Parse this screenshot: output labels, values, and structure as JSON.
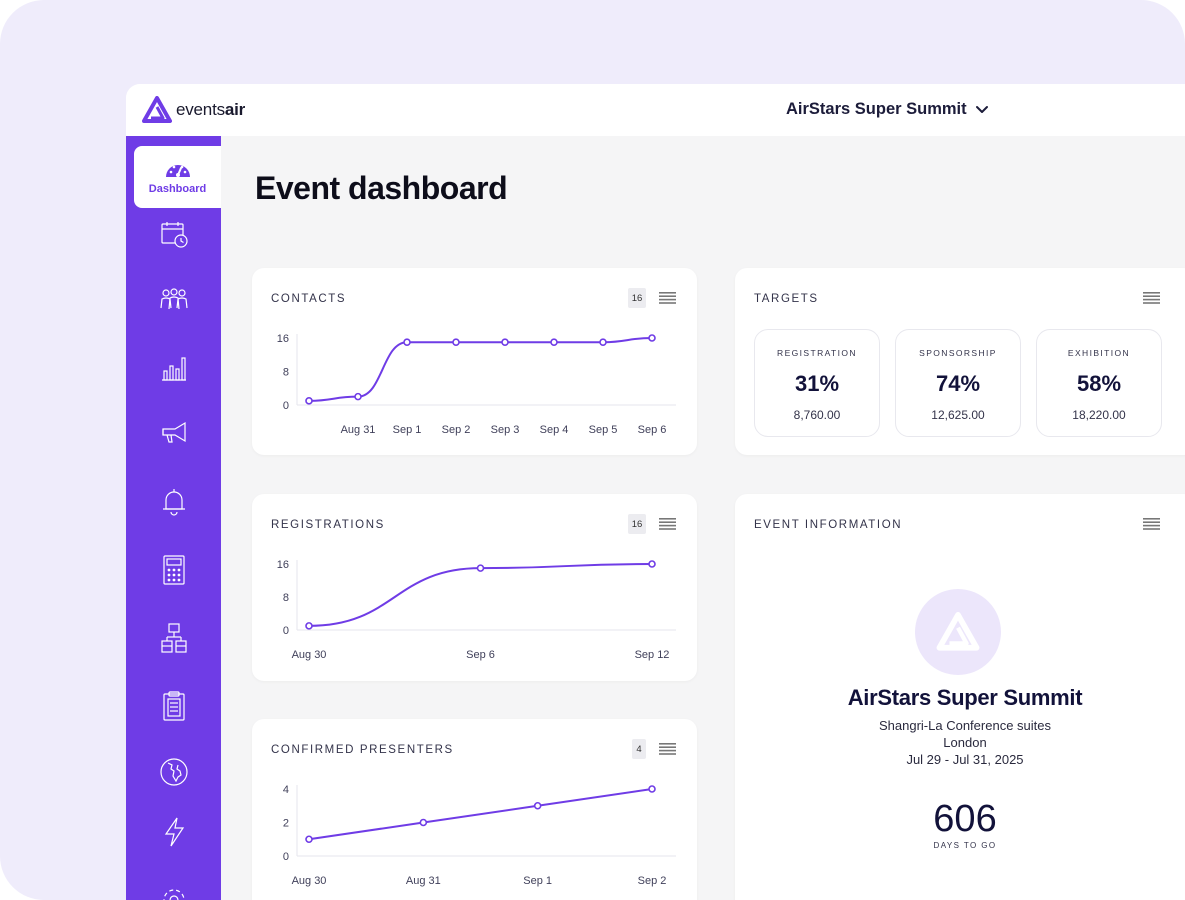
{
  "app": {
    "logo_prefix": "events",
    "logo_suffix": "air",
    "event_selector": "AirStars Super Summit"
  },
  "sidebar": {
    "active_label": "Dashboard",
    "icons": [
      "dashboard-gauge-icon",
      "calendar-clock-icon",
      "people-icon",
      "bar-chart-icon",
      "megaphone-icon",
      "bell-icon",
      "calculator-icon",
      "hierarchy-icon",
      "clipboard-icon",
      "globe-icon",
      "lightning-icon",
      "settings-gear-icon"
    ]
  },
  "page": {
    "title": "Event dashboard"
  },
  "contacts": {
    "title": "CONTACTS",
    "badge": "16",
    "chart_data": {
      "type": "line",
      "x": [
        "",
        "Aug 31",
        "Sep 1",
        "Sep 2",
        "Sep 3",
        "Sep 4",
        "Sep 5",
        "Sep 6"
      ],
      "values": [
        1,
        2,
        15,
        15,
        15,
        15,
        15,
        16
      ],
      "y_ticks": [
        "16",
        "8",
        "0"
      ],
      "ylim": [
        0,
        16
      ],
      "color": "#6f3ce6"
    }
  },
  "registrations": {
    "title": "REGISTRATIONS",
    "badge": "16",
    "chart_data": {
      "type": "line",
      "x": [
        "Aug 30",
        "Sep 6",
        "Sep 12"
      ],
      "values": [
        1,
        15,
        16
      ],
      "y_ticks": [
        "16",
        "8",
        "0"
      ],
      "ylim": [
        0,
        16
      ],
      "color": "#6f3ce6"
    }
  },
  "presenters": {
    "title": "CONFIRMED PRESENTERS",
    "badge": "4",
    "chart_data": {
      "type": "line",
      "x": [
        "Aug 30",
        "Aug 31",
        "Sep 1",
        "Sep 2"
      ],
      "values": [
        1,
        2,
        3,
        4
      ],
      "y_ticks": [
        "4",
        "2",
        "0"
      ],
      "ylim": [
        0,
        4
      ],
      "color": "#6f3ce6"
    }
  },
  "targets": {
    "title": "TARGETS",
    "items": [
      {
        "label": "REGISTRATION",
        "percent": "31%",
        "amount": "8,760.00"
      },
      {
        "label": "SPONSORSHIP",
        "percent": "74%",
        "amount": "12,625.00"
      },
      {
        "label": "EXHIBITION",
        "percent": "58%",
        "amount": "18,220.00"
      }
    ]
  },
  "event_info": {
    "title": "EVENT INFORMATION",
    "name": "AirStars Super Summit",
    "venue": "Shangri-La Conference suites",
    "city": "London",
    "dates": "Jul 29 - Jul 31, 2025",
    "days_to_go": "606",
    "days_label": "DAYS TO GO"
  }
}
